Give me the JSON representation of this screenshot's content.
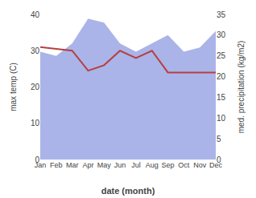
{
  "chart_data": {
    "type": "line",
    "categories": [
      "Jan",
      "Feb",
      "Mar",
      "Apr",
      "May",
      "Jun",
      "Jul",
      "Aug",
      "Sep",
      "Oct",
      "Nov",
      "Dec"
    ],
    "series": [
      {
        "type": "area",
        "axis": "y2",
        "color": "#aab4e8",
        "values": [
          26,
          25,
          28,
          34,
          33,
          28,
          26,
          28,
          30,
          26,
          27,
          31
        ]
      },
      {
        "type": "line",
        "color": "#b54040",
        "values": [
          31,
          30.5,
          30,
          24.5,
          26,
          30,
          28,
          30,
          24,
          24,
          24,
          24
        ]
      }
    ],
    "xlabel": "date (month)",
    "ylabel": "max temp (C)",
    "y2label": "med. precipitation (kg/m2)",
    "ylim": [
      0,
      40
    ],
    "yticks": [
      0,
      10,
      20,
      30,
      40
    ],
    "y2lim": [
      0,
      35
    ],
    "y2ticks": [
      0,
      5,
      10,
      15,
      20,
      25,
      30,
      35
    ],
    "grid": false
  }
}
